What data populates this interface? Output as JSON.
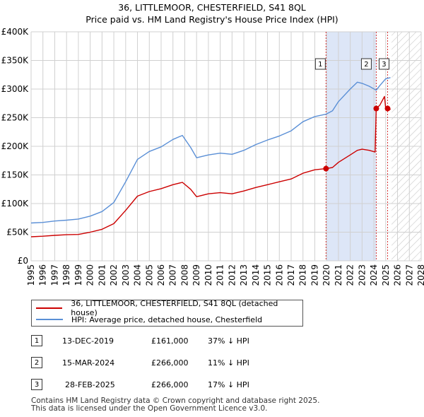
{
  "header": {
    "title_line1": "36, LITTLEMOOR, CHESTERFIELD, S41 8QL",
    "title_line2": "Price paid vs. HM Land Registry's House Price Index (HPI)"
  },
  "colors": {
    "property": "#cc0000",
    "hpi": "#5a8fd6",
    "highlight": "#dde6f7",
    "marker": "#cc0000",
    "grid": "#d0d0d0"
  },
  "chart_data": {
    "type": "line",
    "title": "Price paid vs. HM Land Registry's House Price Index (HPI)",
    "xlim": [
      1995,
      2028
    ],
    "ylim": [
      0,
      400000
    ],
    "x_ticks": [
      1995,
      1996,
      1997,
      1998,
      1999,
      2000,
      2001,
      2002,
      2003,
      2004,
      2005,
      2006,
      2007,
      2008,
      2009,
      2010,
      2011,
      2012,
      2013,
      2014,
      2015,
      2016,
      2017,
      2018,
      2019,
      2020,
      2021,
      2022,
      2023,
      2024,
      2025,
      2026,
      2027,
      2028
    ],
    "y_ticks": [
      0,
      50000,
      100000,
      150000,
      200000,
      250000,
      300000,
      350000,
      400000
    ],
    "y_tick_labels": [
      "£0",
      "£50K",
      "£100K",
      "£150K",
      "£200K",
      "£250K",
      "£300K",
      "£350K",
      "£400K"
    ],
    "highlight_range": [
      2019.95,
      2024.2
    ],
    "hatch_from": 2025.5,
    "series": [
      {
        "name": "36, LITTLEMOOR, CHESTERFIELD, S41 8QL (detached house)",
        "x": [
          1995,
          1996,
          1997,
          1998,
          1999,
          2000,
          2001,
          2001.5,
          2002,
          2003,
          2004,
          2005,
          2006,
          2007,
          2007.8,
          2008.5,
          2009,
          2010,
          2011,
          2012,
          2013,
          2014,
          2015,
          2016,
          2017,
          2018,
          2019,
          2019.95,
          2020.5,
          2021,
          2022,
          2022.6,
          2023,
          2023.6,
          2024.1,
          2024.2,
          2024.5,
          2024.9,
          2025.0,
          2025.2,
          2025.4
        ],
        "values": [
          42000,
          43000,
          44500,
          45500,
          46000,
          50000,
          55000,
          60000,
          65000,
          88000,
          113000,
          121000,
          126000,
          133000,
          137000,
          125000,
          112000,
          117000,
          119000,
          117000,
          122000,
          128000,
          133000,
          138000,
          143000,
          153000,
          159000,
          161000,
          163000,
          172000,
          185000,
          193000,
          195000,
          193000,
          190000,
          266000,
          272000,
          287000,
          266000,
          269000,
          264000
        ]
      },
      {
        "name": "HPI: Average price, detached house, Chesterfield",
        "x": [
          1995,
          1996,
          1997,
          1998,
          1999,
          2000,
          2001,
          2001.5,
          2002,
          2003,
          2004,
          2005,
          2006,
          2007,
          2007.8,
          2008.5,
          2009,
          2010,
          2011,
          2012,
          2013,
          2014,
          2015,
          2016,
          2017,
          2018,
          2019,
          2019.95,
          2020.5,
          2021,
          2022,
          2022.6,
          2023,
          2023.6,
          2024.2,
          2024.5,
          2025.0,
          2025.4
        ],
        "values": [
          66000,
          67000,
          69500,
          71000,
          73000,
          78000,
          86000,
          94000,
          102000,
          138000,
          177000,
          191000,
          199000,
          212000,
          219000,
          198000,
          180000,
          185000,
          188000,
          186000,
          193000,
          203000,
          211000,
          218000,
          227000,
          243000,
          252000,
          256000,
          262000,
          278000,
          300000,
          312000,
          310000,
          305000,
          298000,
          306000,
          318000,
          320000
        ]
      }
    ],
    "sales": [
      {
        "label": "1",
        "date": "13-DEC-2019",
        "x": 2019.95,
        "price": 161000,
        "price_text": "£161,000",
        "hpi_text": "37% ↓ HPI"
      },
      {
        "label": "2",
        "date": "15-MAR-2024",
        "x": 2024.2,
        "price": 266000,
        "price_text": "£266,000",
        "hpi_text": "11% ↓ HPI"
      },
      {
        "label": "3",
        "date": "28-FEB-2025",
        "x": 2025.16,
        "price": 266000,
        "price_text": "£266,000",
        "hpi_text": "17% ↓ HPI"
      }
    ]
  },
  "legend": {
    "property_label": "36, LITTLEMOOR, CHESTERFIELD, S41 8QL (detached house)",
    "hpi_label": "HPI: Average price, detached house, Chesterfield"
  },
  "footer": {
    "line1": "Contains HM Land Registry data © Crown copyright and database right 2025.",
    "line2": "This data is licensed under the Open Government Licence v3.0."
  }
}
